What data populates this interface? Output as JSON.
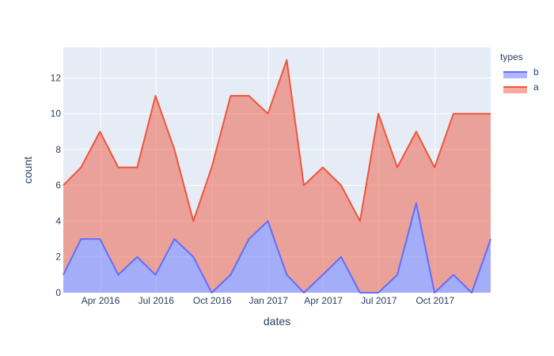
{
  "chart_data": {
    "type": "area",
    "stacked": true,
    "xlabel": "dates",
    "ylabel": "count",
    "x": [
      "2016-01-31",
      "2016-02-29",
      "2016-03-31",
      "2016-04-30",
      "2016-05-31",
      "2016-06-30",
      "2016-07-31",
      "2016-08-31",
      "2016-09-30",
      "2016-10-31",
      "2016-11-30",
      "2016-12-31",
      "2017-01-31",
      "2017-02-28",
      "2017-03-31",
      "2017-04-30",
      "2017-05-31",
      "2017-06-30",
      "2017-07-31",
      "2017-08-31",
      "2017-09-30",
      "2017-10-31",
      "2017-11-30",
      "2017-12-31"
    ],
    "xlim": [
      "2016-01-31",
      "2017-12-31"
    ],
    "x_ticks": [
      {
        "date": "2016-04-01",
        "label": "Apr 2016"
      },
      {
        "date": "2016-07-01",
        "label": "Jul 2016"
      },
      {
        "date": "2016-10-01",
        "label": "Oct 2016"
      },
      {
        "date": "2017-01-01",
        "label": "Jan 2017"
      },
      {
        "date": "2017-04-01",
        "label": "Apr 2017"
      },
      {
        "date": "2017-07-01",
        "label": "Jul 2017"
      },
      {
        "date": "2017-10-01",
        "label": "Oct 2017"
      }
    ],
    "ylim": [
      0,
      13.7
    ],
    "y_ticks": [
      0,
      2,
      4,
      6,
      8,
      10,
      12
    ],
    "grid": true,
    "legend": {
      "title": "types",
      "position": "top-right"
    },
    "series": [
      {
        "name": "b",
        "color": "#636efa",
        "values": [
          1,
          3,
          3,
          1,
          2,
          1,
          3,
          2,
          0,
          1,
          3,
          4,
          1,
          0,
          1,
          2,
          0,
          0,
          1,
          5,
          0,
          1,
          0,
          3
        ]
      },
      {
        "name": "a",
        "color": "#ef553b",
        "stacked_totals": [
          6,
          7,
          9,
          7,
          7,
          11,
          8,
          4,
          7,
          11,
          11,
          10,
          13,
          6,
          7,
          6,
          4,
          10,
          7,
          9,
          7,
          10,
          10,
          10
        ]
      }
    ]
  }
}
